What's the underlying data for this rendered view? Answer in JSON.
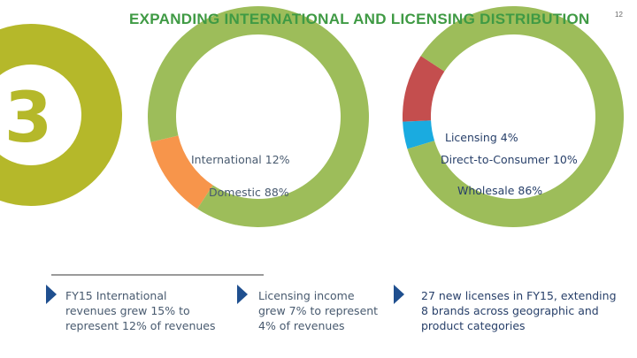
{
  "slide": {
    "number_badge": "3",
    "title": "EXPANDING INTERNATIONAL AND LICENSING DISTRIBUTION",
    "page_number": "12"
  },
  "colors": {
    "green": "#9dbd5a",
    "olive": "#b5b82a",
    "title": "#3f9a44",
    "orange": "#f7954b",
    "blue": "#1aabe0",
    "red": "#c44e4e",
    "text": "#333333",
    "slate": "#485a6f",
    "navy": "#28406a",
    "bullet_arrow": "#1f4f8f"
  },
  "chart_data": [
    {
      "type": "pie",
      "variant": "donut",
      "categories": [
        "International",
        "Domestic"
      ],
      "values": [
        12,
        88
      ],
      "labels": [
        "International 12%",
        "Domestic 88%"
      ]
    },
    {
      "type": "pie",
      "variant": "donut",
      "categories": [
        "Licensing",
        "Direct-to-Consumer",
        "Wholesale"
      ],
      "values": [
        4,
        10,
        86
      ],
      "labels": [
        "Licensing 4%",
        "Direct-to-Consumer 10%",
        "Wholesale 86%"
      ]
    }
  ],
  "bullets": [
    {
      "icon": "arrow-right-icon",
      "text": [
        "FY15 International",
        "revenues grew 15% to",
        "represent 12% of revenues"
      ]
    },
    {
      "icon": "arrow-right-icon",
      "text": [
        "Licensing income",
        "grew 7% to represent",
        "4% of revenues"
      ]
    },
    {
      "icon": "arrow-right-icon",
      "text": [
        "27 new licenses in FY15, extending",
        "8 brands across geographic and",
        "product categories"
      ]
    }
  ]
}
